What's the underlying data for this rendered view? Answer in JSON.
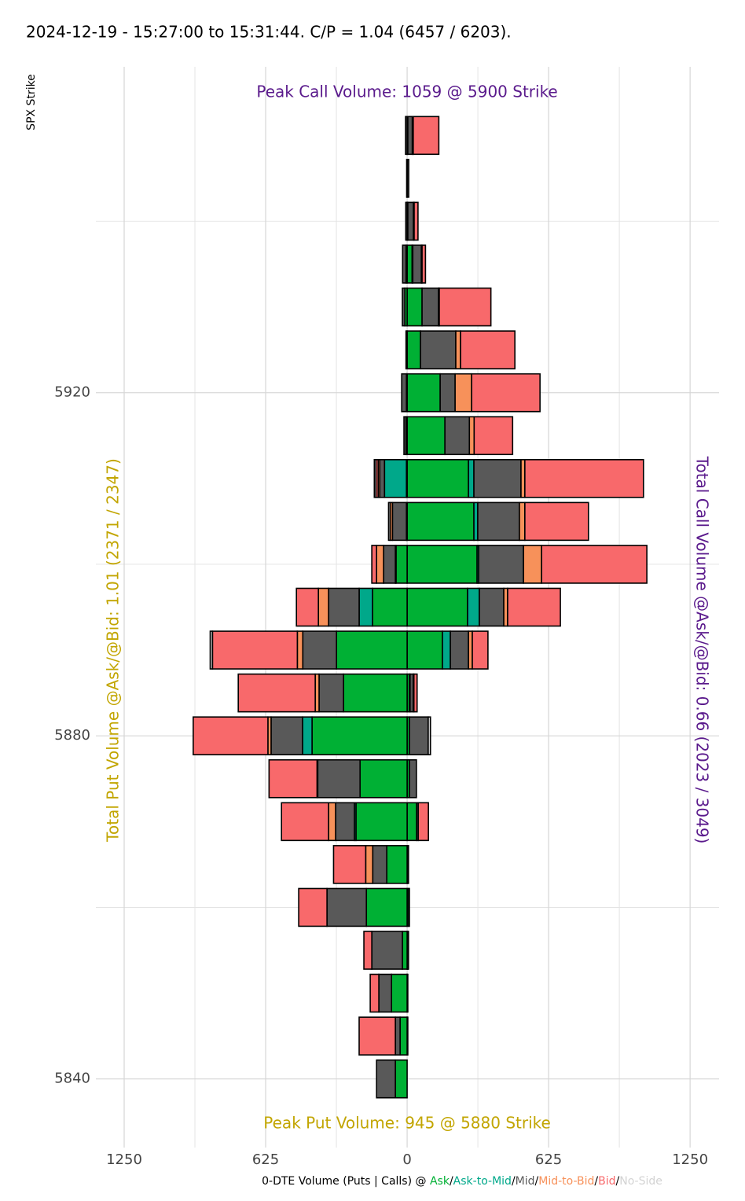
{
  "chart_data": {
    "type": "diverging_bar",
    "title": "2024-12-19 - 15:27:00 to 15:31:44. C/P = 1.04 (6457 / 6203).",
    "y_label": "SPX Strike",
    "x_label": "0-DTE Volume (Puts | Calls) @",
    "label_separator": "/",
    "peak_call": "Peak Call Volume: 1059 @ 5900 Strike",
    "peak_put": "Peak Put Volume: 945 @ 5880 Strike",
    "put_total": "Total Put Volume @Ask/@Bid: 1.01 (2371 / 2347)",
    "call_total": "Total Call Volume @Ask/@Bid: 0.66 (2023 / 3049)",
    "call_color": "#5a1a8c",
    "put_color": "#c2a500",
    "y": [
      5950,
      5945,
      5940,
      5935,
      5930,
      5925,
      5920,
      5915,
      5910,
      5905,
      5900,
      5895,
      5890,
      5885,
      5880,
      5875,
      5870,
      5865,
      5860,
      5855,
      5850,
      5845,
      5840
    ],
    "ylim": [
      5832,
      5958
    ],
    "yticks": [
      5840,
      5880,
      5920
    ],
    "y_minor_ticks": [
      5860,
      5900,
      5940
    ],
    "xlim": [
      -1375,
      1378
    ],
    "xticks": [
      {
        "value": -1250,
        "label": "1250"
      },
      {
        "value": -625,
        "label": "625"
      },
      0,
      625,
      1250
    ],
    "x_minor_ticks": [
      -937.5,
      -312.5,
      312.5,
      937.5
    ],
    "grid": true,
    "series": [
      {
        "name": "Ask",
        "color": "#00b034",
        "calls": [
          3,
          0,
          3,
          22,
          66,
          59,
          146,
          167,
          271,
          295,
          309,
          267,
          156,
          10,
          10,
          10,
          42,
          3,
          7,
          3,
          3,
          3,
          0
        ],
        "puts": [
          0,
          0,
          0,
          5,
          10,
          5,
          3,
          5,
          3,
          3,
          49,
          153,
          312,
          281,
          420,
          208,
          226,
          90,
          180,
          21,
          69,
          31,
          52
        ]
      },
      {
        "name": "Ask-to-Mid",
        "color": "#00a88a",
        "calls": [
          0,
          0,
          0,
          3,
          0,
          0,
          0,
          0,
          24,
          17,
          7,
          52,
          35,
          3,
          0,
          0,
          0,
          0,
          0,
          0,
          0,
          0,
          0
        ],
        "puts": [
          0,
          0,
          0,
          0,
          0,
          0,
          0,
          0,
          97,
          0,
          3,
          59,
          0,
          0,
          42,
          0,
          7,
          0,
          0,
          0,
          0,
          0,
          0
        ]
      },
      {
        "name": "Mid",
        "color": "#595959",
        "calls": [
          20,
          7,
          25,
          38,
          73,
          156,
          66,
          108,
          208,
          184,
          198,
          108,
          80,
          14,
          83,
          31,
          7,
          3,
          3,
          3,
          0,
          0,
          0
        ],
        "puts": [
          7,
          2,
          6,
          15,
          11,
          0,
          21,
          9,
          21,
          62,
          52,
          135,
          149,
          108,
          139,
          187,
          83,
          62,
          174,
          135,
          56,
          21,
          83
        ]
      },
      {
        "name": "Mid-to-Bid",
        "color": "#f7915a",
        "calls": [
          4,
          0,
          3,
          3,
          3,
          21,
          73,
          21,
          17,
          24,
          80,
          17,
          17,
          3,
          0,
          0,
          0,
          0,
          0,
          0,
          0,
          0,
          0
        ],
        "puts": [
          0,
          0,
          0,
          0,
          0,
          0,
          0,
          0,
          7,
          10,
          31,
          45,
          24,
          17,
          14,
          3,
          31,
          31,
          0,
          0,
          0,
          0,
          0
        ]
      },
      {
        "name": "Bid",
        "color": "#f8696b",
        "calls": [
          113,
          0,
          17,
          15,
          228,
          240,
          302,
          170,
          524,
          281,
          465,
          233,
          69,
          14,
          0,
          0,
          45,
          0,
          0,
          0,
          0,
          0,
          0
        ],
        "puts": [
          0,
          0,
          0,
          0,
          0,
          0,
          0,
          0,
          10,
          0,
          21,
          97,
          375,
          340,
          330,
          212,
          208,
          142,
          125,
          35,
          38,
          160,
          0
        ]
      },
      {
        "name": "No-Side",
        "color": "#d3d3d3",
        "calls": [
          0,
          0,
          0,
          0,
          0,
          0,
          0,
          0,
          0,
          0,
          0,
          0,
          0,
          0,
          10,
          0,
          0,
          0,
          0,
          0,
          0,
          0,
          0
        ],
        "puts": [
          0,
          0,
          0,
          0,
          0,
          0,
          0,
          0,
          7,
          7,
          0,
          0,
          10,
          0,
          0,
          0,
          0,
          0,
          0,
          0,
          0,
          0,
          0
        ]
      }
    ]
  }
}
